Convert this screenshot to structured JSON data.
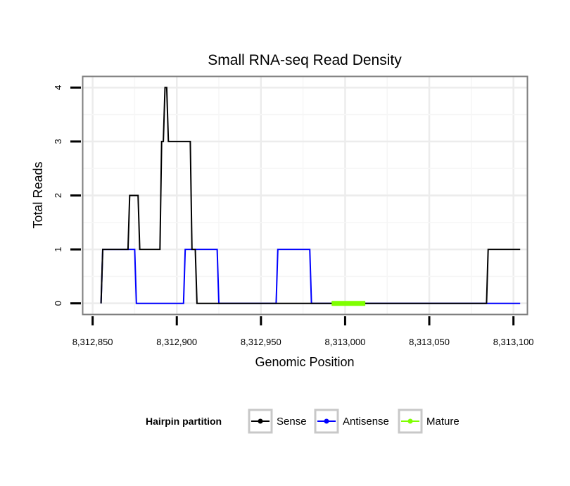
{
  "chart_data": {
    "type": "line",
    "title": "Small RNA-seq Read Density",
    "xlabel": "Genomic Position",
    "ylabel": "Total Reads",
    "xlim": [
      8312844.3,
      8313108.1
    ],
    "ylim": [
      -0.2,
      4.2
    ],
    "grid": true,
    "x_ticks": [
      8312850,
      8312900,
      8312950,
      8313000,
      8313050,
      8313100
    ],
    "x_tick_labels": [
      "8,312,850",
      "8,312,900",
      "8,312,950",
      "8,313,000",
      "8,313,050",
      "8,313,100"
    ],
    "y_ticks": [
      0,
      1,
      2,
      3,
      4
    ],
    "y_tick_labels": [
      "0",
      "1",
      "2",
      "3",
      "4"
    ],
    "legend": {
      "title": "Hairpin partition",
      "position": "bottom",
      "entries": [
        "Sense",
        "Antisense",
        "Mature"
      ]
    },
    "series": [
      {
        "name": "Sense",
        "color": "#000000",
        "x": [
          8312855,
          8312856,
          8312871,
          8312872,
          8312877,
          8312878,
          8312890,
          8312891,
          8312892,
          8312893,
          8312894,
          8312895,
          8312908,
          8312909,
          8312911,
          8312912,
          8313084,
          8313085,
          8313104
        ],
        "y": [
          0,
          1,
          1,
          2,
          2,
          1,
          1,
          3,
          3,
          4,
          4,
          3,
          3,
          1,
          1,
          0,
          0,
          1,
          1
        ]
      },
      {
        "name": "Antisense",
        "color": "#0000ff",
        "x": [
          8312855,
          8312856,
          8312875,
          8312876,
          8312904,
          8312905,
          8312924,
          8312925,
          8312959,
          8312960,
          8312979,
          8312980,
          8313104
        ],
        "y": [
          0,
          1,
          1,
          0,
          0,
          1,
          1,
          0,
          0,
          1,
          1,
          0,
          0
        ]
      },
      {
        "name": "Mature",
        "color": "#7fff00",
        "x": [
          8312992,
          8313012
        ],
        "y": [
          0,
          0
        ]
      }
    ]
  }
}
